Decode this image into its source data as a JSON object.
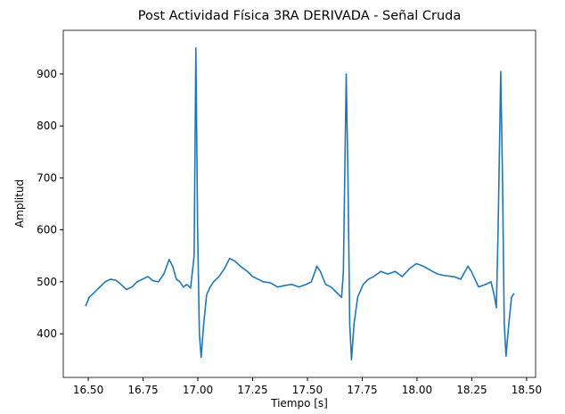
{
  "chart_data": {
    "type": "line",
    "title": "Post Actividad Física 3RA DERIVADA - Señal Cruda",
    "x_label": "Tiempo [s]",
    "y_label": "Amplitud",
    "xlim": [
      16.386,
      18.541
    ],
    "ylim": [
      316,
      984
    ],
    "xticks": [
      {
        "value": 16.5,
        "label": "16.50"
      },
      {
        "value": 16.75,
        "label": "16.75"
      },
      {
        "value": 17.0,
        "label": "17.00"
      },
      {
        "value": 17.25,
        "label": "17.25"
      },
      {
        "value": 17.5,
        "label": "17.50"
      },
      {
        "value": 17.75,
        "label": "17.75"
      },
      {
        "value": 18.0,
        "label": "18.00"
      },
      {
        "value": 18.25,
        "label": "18.25"
      },
      {
        "value": 18.5,
        "label": "18.50"
      }
    ],
    "yticks": [
      400,
      500,
      600,
      700,
      800,
      900
    ],
    "grid": false,
    "x": [
      16.488,
      16.504,
      16.524,
      16.553,
      16.577,
      16.601,
      16.626,
      16.65,
      16.674,
      16.699,
      16.723,
      16.747,
      16.772,
      16.796,
      16.82,
      16.845,
      16.869,
      16.885,
      16.902,
      16.918,
      16.934,
      16.95,
      16.967,
      16.983,
      16.991,
      16.999,
      17.007,
      17.015,
      17.027,
      17.04,
      17.056,
      17.072,
      17.096,
      17.121,
      17.145,
      17.169,
      17.194,
      17.226,
      17.25,
      17.275,
      17.299,
      17.332,
      17.364,
      17.397,
      17.429,
      17.461,
      17.494,
      17.518,
      17.543,
      17.559,
      17.583,
      17.608,
      17.632,
      17.656,
      17.664,
      17.677,
      17.685,
      17.693,
      17.701,
      17.713,
      17.729,
      17.754,
      17.778,
      17.802,
      17.835,
      17.867,
      17.9,
      17.932,
      17.965,
      17.997,
      18.029,
      18.062,
      18.094,
      18.127,
      18.167,
      18.2,
      18.232,
      18.248,
      18.281,
      18.313,
      18.338,
      18.354,
      18.362,
      18.37,
      18.382,
      18.39,
      18.398,
      18.406,
      18.419,
      18.431,
      18.443
    ],
    "series": [
      {
        "color": "#1f77b4",
        "values": [
          453,
          470,
          478,
          490,
          500,
          505,
          503,
          495,
          485,
          490,
          500,
          505,
          510,
          502,
          500,
          515,
          543,
          530,
          505,
          500,
          490,
          495,
          488,
          550,
          950,
          600,
          400,
          355,
          420,
          475,
          490,
          500,
          510,
          525,
          545,
          540,
          530,
          520,
          510,
          505,
          500,
          498,
          490,
          493,
          495,
          490,
          495,
          500,
          530,
          520,
          495,
          490,
          480,
          470,
          520,
          900,
          700,
          420,
          350,
          420,
          470,
          495,
          505,
          510,
          520,
          515,
          520,
          510,
          525,
          535,
          530,
          522,
          515,
          512,
          510,
          505,
          530,
          520,
          490,
          495,
          500,
          470,
          450,
          600,
          905,
          700,
          420,
          357,
          420,
          470,
          478
        ]
      }
    ]
  }
}
